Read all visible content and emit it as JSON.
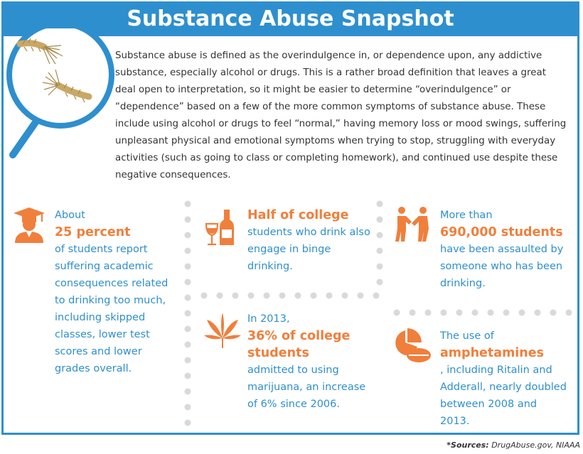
{
  "title": "Substance Abuse Snapshot",
  "intro": "Substance abuse is defined as the overindulgence in, or dependence upon, any addictive substance, especially alcohol or drugs. This is a rather broad definition that leaves a great deal open to interpretation, so it might be easier to determine “overindulgence” or “dependence” based on a few of the more common symptoms of substance abuse. These include using alcohol or drugs to feel “normal,” having memory loss or mood swings, suffering unpleasant physical and emotional symptoms when trying to stop, struggling with everyday activities (such as going to class or completing homework), and continued use despite these negative consequences.",
  "stats": {
    "academic": {
      "pre": "About",
      "highlight": "25 percent",
      "post": "of students report suffering academic consequences related to drinking too much, including skipped classes, lower test scores and lower grades overall."
    },
    "binge": {
      "highlight": "Half of college",
      "post": "students who drink also engage in binge drinking."
    },
    "assault": {
      "pre": "More than",
      "highlight": "690,000 students",
      "post": "have been assaulted by someone who has been drinking."
    },
    "marijuana": {
      "pre": "In 2013,",
      "highlight": "36% of college students",
      "post": "admitted to using marijuana, an increase of 6% since 2006."
    },
    "amphetamines": {
      "pre": "The use of",
      "highlight": "amphetamines",
      "post": ", including Ritalin and Adderall, nearly doubled between 2008 and 2013."
    }
  },
  "sources": {
    "label": "*Sources:",
    "text": " DrugAbuse.gov, NIAAA"
  },
  "colors": {
    "blue": "#2e8fce",
    "orange": "#f07f3c",
    "dots": "#d9d9d9"
  },
  "icons": [
    "magnifier-rope-icon",
    "graduate-icon",
    "wine-glass-bottle-icon",
    "fighting-people-icon",
    "cannabis-leaf-icon",
    "pills-icon"
  ]
}
